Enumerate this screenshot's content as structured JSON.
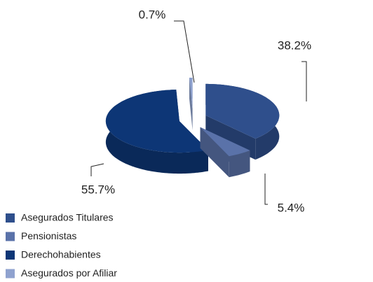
{
  "chart_data": {
    "type": "pie",
    "categories": [
      "Asegurados Titulares",
      "Pensionistas",
      "Derechohabientes",
      "Asegurados por Afiliar"
    ],
    "values": [
      38.2,
      5.4,
      55.7,
      0.7
    ],
    "value_labels": [
      "38.2%",
      "5.4%",
      "55.7%",
      "0.7%"
    ],
    "colors": [
      "#2f4f8c",
      "#5a72a9",
      "#0d3676",
      "#8fa2cf"
    ],
    "legend": "bottom-left"
  }
}
